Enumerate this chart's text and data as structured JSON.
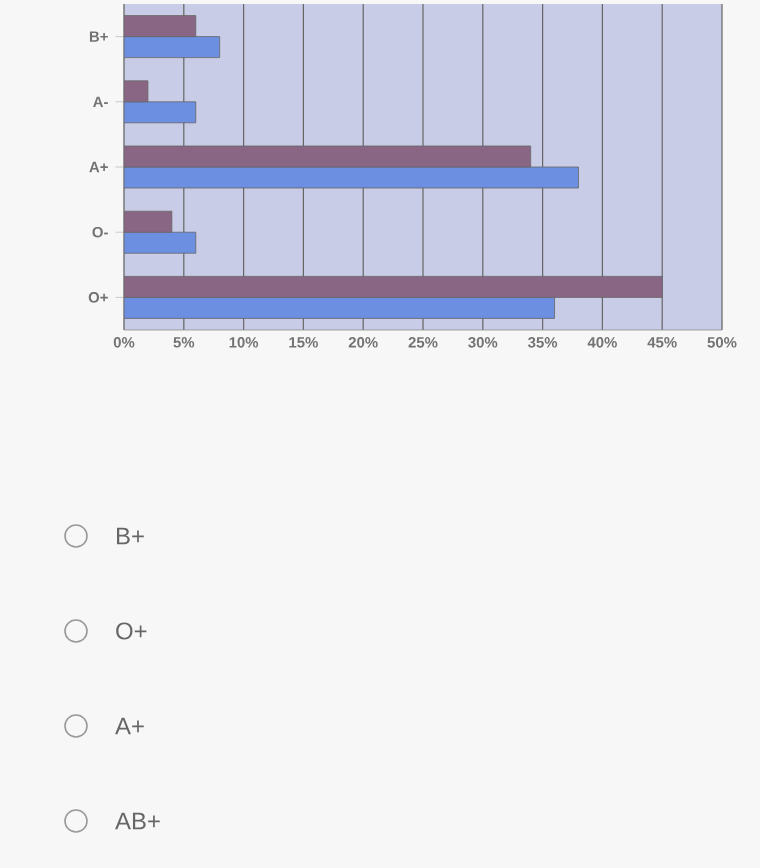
{
  "chart_data": {
    "type": "bar",
    "orientation": "horizontal",
    "categories": [
      "B+",
      "A-",
      "A+",
      "O-",
      "O+"
    ],
    "series": [
      {
        "color": "#6c8fe2",
        "values": [
          8,
          6,
          38,
          6,
          36
        ]
      },
      {
        "color": "#8a6685",
        "values": [
          6,
          2,
          34,
          4,
          45
        ]
      }
    ],
    "xlim": [
      0,
      50
    ],
    "xticks": [
      {
        "value": 0,
        "label": "0%"
      },
      {
        "value": 5,
        "label": "5%"
      },
      {
        "value": 10,
        "label": "10%"
      },
      {
        "value": 15,
        "label": "15%"
      },
      {
        "value": 20,
        "label": "20%"
      },
      {
        "value": 25,
        "label": "25%"
      },
      {
        "value": 30,
        "label": "30%"
      },
      {
        "value": 35,
        "label": "35%"
      },
      {
        "value": 40,
        "label": "40%"
      },
      {
        "value": 45,
        "label": "45%"
      },
      {
        "value": 50,
        "label": "50%"
      }
    ],
    "grid": "x",
    "annotations": [
      "B+",
      "O+",
      "A+",
      "AB+"
    ]
  }
}
